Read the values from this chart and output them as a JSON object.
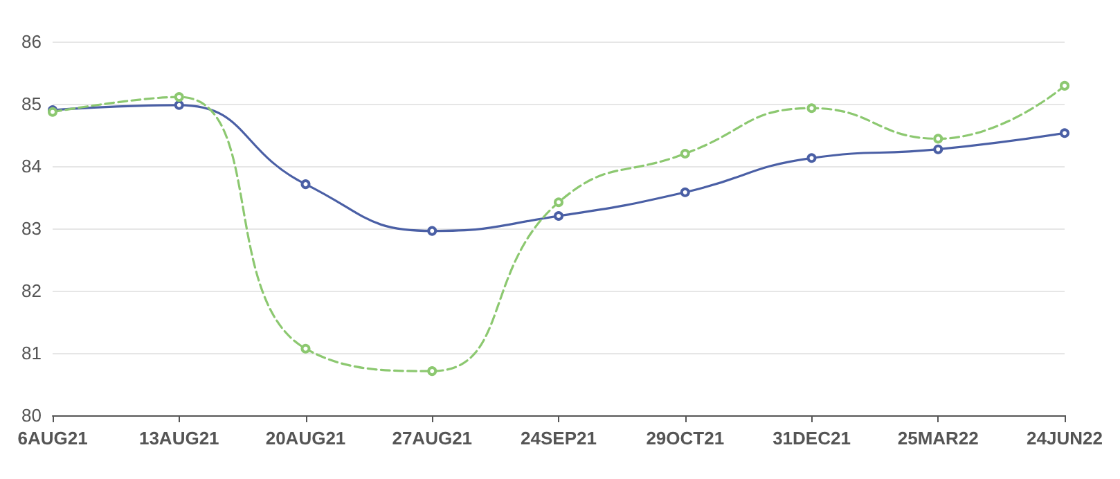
{
  "chart_data": {
    "type": "line",
    "categories": [
      "6AUG21",
      "13AUG21",
      "20AUG21",
      "27AUG21",
      "24SEP21",
      "29OCT21",
      "31DEC21",
      "25MAR22",
      "24JUN22"
    ],
    "series": [
      {
        "color": "#4a5fa5",
        "line_style": "solid",
        "values": [
          84.9,
          84.98,
          83.71,
          82.96,
          83.2,
          83.58,
          84.13,
          84.27,
          84.53
        ]
      },
      {
        "color": "#8cc870",
        "line_style": "dashed",
        "values": [
          84.87,
          85.11,
          81.07,
          80.71,
          83.42,
          84.2,
          84.93,
          84.44,
          85.29
        ]
      }
    ],
    "ylim": [
      80,
      86
    ],
    "yticks": [
      80,
      81,
      82,
      83,
      84,
      85,
      86
    ],
    "grid": "y",
    "marker": "circle"
  }
}
